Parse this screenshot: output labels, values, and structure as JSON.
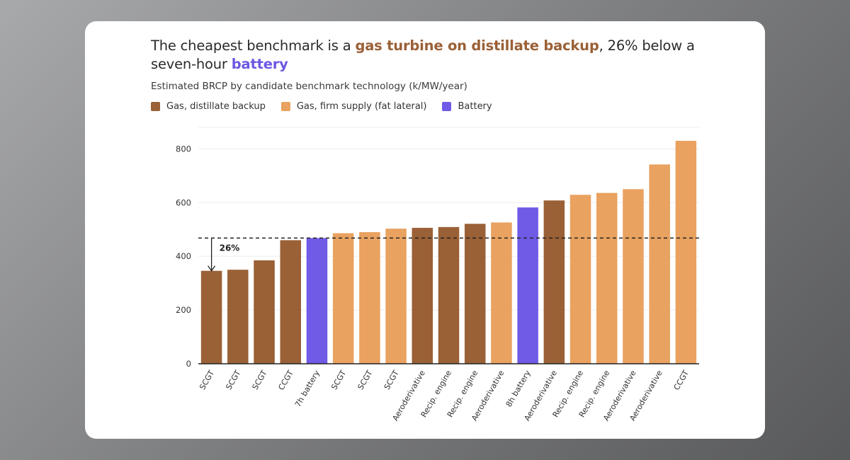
{
  "title": {
    "part1": "The cheapest benchmark is a ",
    "highlight1": "gas turbine on distillate backup",
    "part2": ", 26% below a seven-hour ",
    "highlight2": "battery"
  },
  "colors": {
    "distillate": "#9a6036",
    "firm": "#e9a260",
    "battery": "#6f5be6"
  },
  "chart_data": {
    "type": "bar",
    "title": "The cheapest benchmark is a gas turbine on distillate backup, 26% below a seven-hour battery",
    "subtitle": "Estimated BRCP by candidate benchmark technology (k/MW/year)",
    "xlabel": "",
    "ylabel": "",
    "ylim": [
      0,
      880
    ],
    "yticks": [
      0,
      200,
      400,
      600,
      800
    ],
    "grid": true,
    "legend": [
      {
        "key": "distillate",
        "label": "Gas, distillate backup"
      },
      {
        "key": "firm",
        "label": "Gas, firm supply (fat lateral)"
      },
      {
        "key": "battery",
        "label": "Battery"
      }
    ],
    "categories": [
      "SCGT",
      "SCGT",
      "SCGT",
      "CCGT",
      "7h battery",
      "SCGT",
      "SCGT",
      "SCGT",
      "Aeroderivative",
      "Recip. engine",
      "Recip. engine",
      "Aeroderivative",
      "8h battery",
      "Aeroderivative",
      "Recip. engine",
      "Recip. engine",
      "Aeroderivative",
      "Aeroderivative",
      "CCGT"
    ],
    "values": [
      346,
      350,
      385,
      460,
      468,
      486,
      490,
      503,
      506,
      509,
      521,
      526,
      582,
      608,
      629,
      636,
      650,
      742,
      830
    ],
    "groups": [
      "distillate",
      "distillate",
      "distillate",
      "distillate",
      "battery",
      "firm",
      "firm",
      "firm",
      "distillate",
      "distillate",
      "distillate",
      "firm",
      "battery",
      "distillate",
      "firm",
      "firm",
      "firm",
      "firm",
      "firm"
    ],
    "reference_line": {
      "value": 468,
      "style": "dashed"
    },
    "annotation": {
      "label": "26%",
      "from": 468,
      "to": 346,
      "category_index": 0
    }
  }
}
